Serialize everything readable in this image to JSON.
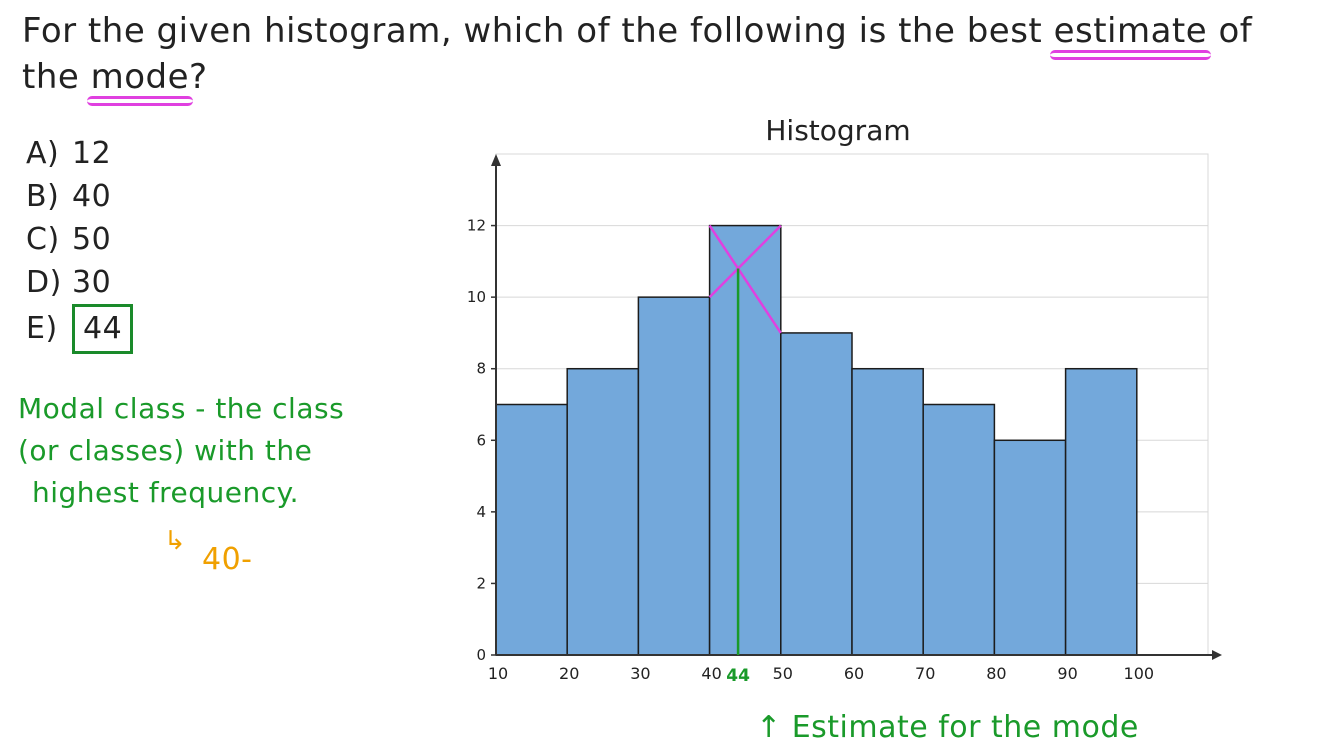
{
  "question": {
    "before": "For the given histogram, which of the following is the best ",
    "highlight1": "estimate",
    "middle": " of the ",
    "highlight2": "mode",
    "after": "?"
  },
  "options": [
    {
      "letter": "A)",
      "value": "12"
    },
    {
      "letter": "B)",
      "value": "40"
    },
    {
      "letter": "C)",
      "value": "50"
    },
    {
      "letter": "D)",
      "value": "30"
    },
    {
      "letter": "E)",
      "value": "44"
    }
  ],
  "correct_index": 4,
  "note": {
    "line1": "Modal class - the class",
    "line2": "(or classes) with the",
    "line3": "highest frequency.",
    "modal_value": "40-"
  },
  "estimate_label": "Estimate for the mode",
  "colors": {
    "bar": "#73a8db",
    "highlight": "#e040e0",
    "green": "#1a9a2a",
    "orange": "#f0a000"
  },
  "chart_data": {
    "type": "bar",
    "title": "Histogram",
    "xlabel": "",
    "ylabel": "",
    "bin_edges": [
      10,
      20,
      30,
      40,
      50,
      60,
      70,
      80,
      90,
      100
    ],
    "x_ticks": [
      "10",
      "20",
      "30",
      "40",
      "50",
      "60",
      "70",
      "80",
      "90",
      "100"
    ],
    "values": [
      7,
      8,
      10,
      12,
      9,
      8,
      7,
      6,
      8
    ],
    "y_ticks": [
      "0",
      "2",
      "4",
      "6",
      "8",
      "10",
      "12"
    ],
    "xlim": [
      10,
      110
    ],
    "ylim": [
      0,
      14
    ],
    "grid": true,
    "mode_estimate": 44,
    "mode_label": "44"
  }
}
